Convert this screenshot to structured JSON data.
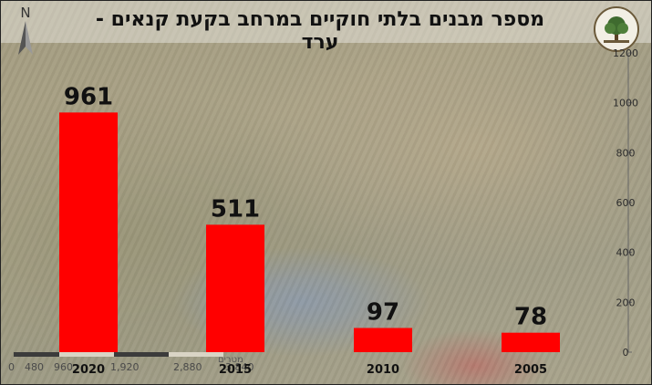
{
  "chart_data": {
    "type": "bar",
    "title": "מספר מבנים בלתי חוקיים במרחב בקעת קנאים - ערד",
    "categories": [
      "2020",
      "2015",
      "2010",
      "2005"
    ],
    "values": [
      961,
      511,
      97,
      78
    ],
    "ylim": [
      0,
      1200
    ],
    "yticks": [
      0,
      200,
      400,
      600,
      800,
      1000,
      1200
    ],
    "xlabel": "",
    "ylabel": "",
    "axis_position": "right",
    "grid": false,
    "bar_color": "#ff0000",
    "data_labels": true
  },
  "map_overlay": {
    "north_label": "N",
    "scale_unit": "מטרים",
    "scale_labels": [
      "0",
      "480",
      "960",
      "1,920",
      "2,880",
      "3,840"
    ],
    "logo_icon": "tree-emblem-icon"
  }
}
